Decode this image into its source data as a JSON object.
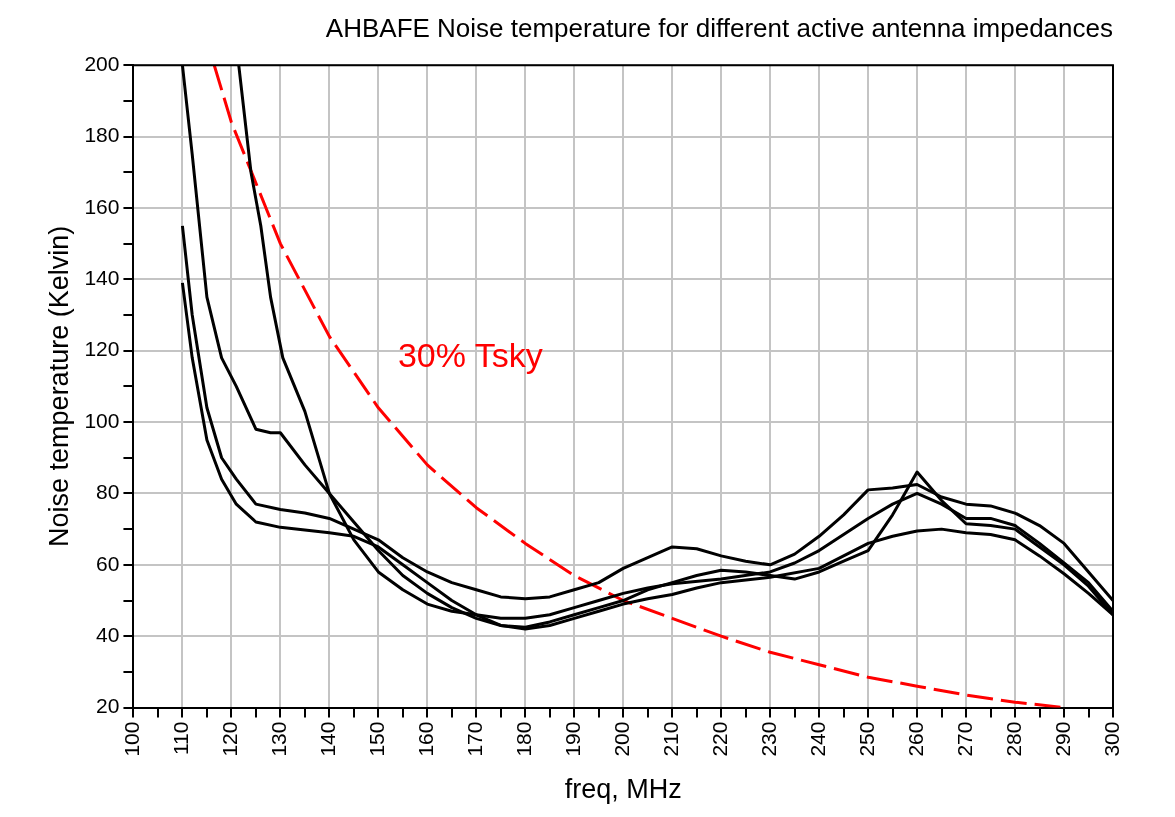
{
  "chart_data": {
    "type": "line",
    "title": "AHBAFE Noise temperature for different active antenna impedances",
    "xlabel": "freq, MHz",
    "ylabel": "Noise temperature (Kelvin)",
    "xlim": [
      100,
      300
    ],
    "xticks": [
      100,
      {
        "value": 105,
        "label": null
      },
      110,
      {
        "value": 115,
        "label": null
      },
      120,
      {
        "value": 125,
        "label": null
      },
      130,
      {
        "value": 135,
        "label": null
      },
      140,
      {
        "value": 145,
        "label": null
      },
      150,
      {
        "value": 155,
        "label": null
      },
      160,
      {
        "value": 165,
        "label": null
      },
      170,
      {
        "value": 175,
        "label": null
      },
      180,
      {
        "value": 185,
        "label": null
      },
      190,
      {
        "value": 195,
        "label": null
      },
      200,
      {
        "value": 205,
        "label": null
      },
      210,
      {
        "value": 215,
        "label": null
      },
      220,
      {
        "value": 225,
        "label": null
      },
      230,
      {
        "value": 235,
        "label": null
      },
      240,
      {
        "value": 245,
        "label": null
      },
      250,
      {
        "value": 255,
        "label": null
      },
      260,
      {
        "value": 265,
        "label": null
      },
      270,
      {
        "value": 275,
        "label": null
      },
      280,
      {
        "value": 285,
        "label": null
      },
      290,
      {
        "value": 295,
        "label": null
      },
      300
    ],
    "ylim": [
      20,
      200
    ],
    "yticks": [
      20,
      {
        "value": 30,
        "label": null
      },
      40,
      {
        "value": 50,
        "label": null
      },
      60,
      {
        "value": 70,
        "label": null
      },
      80,
      {
        "value": 90,
        "label": null
      },
      100,
      {
        "value": 110,
        "label": null
      },
      120,
      {
        "value": 130,
        "label": null
      },
      140,
      {
        "value": 150,
        "label": null
      },
      160,
      {
        "value": 170,
        "label": null
      },
      180,
      {
        "value": 190,
        "label": null
      },
      200
    ],
    "grid": true,
    "legend": false,
    "marker": "none",
    "line_style": "solid",
    "annotations": [
      "30% Tsky"
    ],
    "series": [
      {
        "color": "#000000",
        "x": [
          110,
          112,
          115,
          118,
          121,
          125,
          128,
          130,
          135,
          140,
          145,
          150,
          155,
          160,
          165,
          170,
          175,
          180,
          185,
          190,
          195,
          200,
          205,
          210,
          215,
          220,
          225,
          230,
          235,
          240,
          245,
          250,
          255,
          260,
          265,
          270,
          275,
          280,
          285,
          290,
          295,
          300
        ],
        "values": [
          200,
          175,
          135,
          118,
          110,
          98,
          97,
          97,
          88,
          80,
          72,
          64,
          57,
          52,
          48,
          45,
          43,
          42.5,
          44,
          46,
          48,
          50,
          53,
          55,
          57,
          58.5,
          58,
          57,
          56,
          58,
          61,
          64,
          74,
          86,
          78,
          71.5,
          71,
          70,
          65,
          60,
          54,
          46
        ]
      },
      {
        "color": "#000000",
        "x": [
          121.5,
          124,
          126,
          128,
          130.5,
          135,
          140,
          145,
          150,
          155,
          160,
          165,
          170,
          175,
          180,
          185,
          190,
          195,
          200,
          205,
          210,
          220,
          230,
          235,
          240,
          245,
          250,
          255,
          260,
          265,
          270,
          275,
          280,
          285,
          290,
          295,
          300
        ],
        "values": [
          200,
          170,
          155,
          135,
          118,
          103,
          80,
          67,
          58,
          53,
          49,
          47,
          46,
          45,
          45,
          46,
          48,
          50,
          52,
          53.5,
          54.7,
          56,
          58,
          60.5,
          64,
          68.5,
          73,
          77,
          80,
          77,
          73,
          73,
          71,
          66,
          60.5,
          55,
          47
        ]
      },
      {
        "color": "#000000",
        "x": [
          110,
          112,
          115,
          118,
          121,
          125,
          130,
          135,
          140,
          145,
          150,
          155,
          160,
          165,
          170,
          175,
          180,
          185,
          190,
          195,
          200,
          205,
          210,
          215,
          220,
          225,
          230,
          235,
          240,
          245,
          250,
          255,
          260,
          265,
          270,
          275,
          280,
          285,
          290,
          295,
          300
        ],
        "values": [
          155,
          130,
          104,
          90,
          84,
          77,
          75.5,
          74.5,
          73,
          70,
          67,
          62,
          58,
          55,
          53,
          51,
          50.5,
          51,
          53,
          55,
          59,
          62,
          65,
          64.5,
          62.5,
          61,
          60,
          63,
          68,
          74,
          81,
          81.5,
          82.5,
          79,
          77,
          76.5,
          74.5,
          71,
          66,
          58,
          50
        ]
      },
      {
        "color": "#000000",
        "x": [
          110,
          112,
          115,
          118,
          121,
          125,
          130,
          140,
          145,
          150,
          155,
          160,
          165,
          170,
          175,
          180,
          185,
          190,
          195,
          200,
          205,
          210,
          215,
          220,
          230,
          240,
          245,
          250,
          255,
          260,
          265,
          270,
          275,
          280,
          285,
          290,
          295,
          300
        ],
        "values": [
          139,
          118,
          95,
          84,
          77,
          72,
          70.5,
          69,
          68,
          65,
          60,
          55,
          50,
          46,
          43,
          42,
          43,
          45,
          47,
          49,
          50.5,
          51.7,
          53.5,
          55,
          56.5,
          59,
          62.5,
          66,
          68,
          69.5,
          70,
          69,
          68.5,
          67,
          62.5,
          57.5,
          52,
          46
        ]
      },
      {
        "color": "#ff0000",
        "line_style": "dashed",
        "x": [
          116.5,
          120,
          130,
          140,
          150,
          160,
          170,
          180,
          190,
          200,
          210,
          220,
          230,
          240,
          250,
          260,
          270,
          280,
          290
        ],
        "values": [
          200,
          184,
          150,
          124,
          104,
          88,
          76,
          66,
          57,
          50,
          45,
          40,
          35.5,
          32,
          28.5,
          26,
          23.5,
          21.5,
          20
        ]
      }
    ]
  }
}
